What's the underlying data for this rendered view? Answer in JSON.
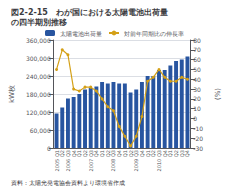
{
  "chart_data": {
    "type": "bar",
    "title": "図2-2-15　わが国における太陽電池出荷量\nの四半期別推移",
    "annotations": [
      "資料：太陽光発電協会資料より環境省作成"
    ],
    "y_label": "kW枚",
    "y2_label": "(%)",
    "categories": [
      "2005 Q1",
      "Q2",
      "2006 Q3",
      "Q4",
      "Q1",
      "Q2",
      "2007 Q3",
      "Q4",
      "Q1",
      "Q2",
      "2008 Q3",
      "Q4",
      "Q1",
      "Q2",
      "2009 Q3",
      "Q4",
      "Q1",
      "Q2",
      "2010 Q3",
      "Q4",
      "Q1",
      "Q2",
      "Q3",
      "Q4"
    ],
    "series": [
      {
        "name": "太陽電池出荷量",
        "type": "bar",
        "color": "#2855a0",
        "values": [
          115000,
          135000,
          165000,
          170000,
          180000,
          195000,
          200000,
          205000,
          220000,
          215000,
          220000,
          215000,
          215000,
          185000,
          195000,
          220000,
          240000,
          240000,
          260000,
          260000,
          275000,
          290000,
          295000,
          305000
        ]
      },
      {
        "name": "対前年同期比の伸長率",
        "type": "line",
        "axis": "y2",
        "color": "#d4a017",
        "marker": "circle",
        "values": [
          50,
          70,
          65,
          30,
          28,
          32,
          32,
          28,
          20,
          12,
          8,
          -8,
          -18,
          -28,
          -18,
          2,
          38,
          42,
          50,
          42,
          38,
          38,
          42,
          40
        ]
      }
    ],
    "ylim": [
      0,
      360000
    ],
    "yticks": [
      0,
      {
        "value": 60000,
        "label": "60,000"
      },
      {
        "value": 120000,
        "label": "120,000"
      },
      {
        "value": 180000,
        "label": "180,000"
      },
      {
        "value": 240000,
        "label": "240,000"
      },
      {
        "value": 300000,
        "label": "300,000"
      },
      {
        "value": 360000,
        "label": "360,000"
      }
    ],
    "y2lim": [
      -30,
      80
    ],
    "y2ticks": [
      -30,
      -20,
      -10,
      0,
      10,
      20,
      30,
      40,
      50,
      60,
      70,
      80
    ],
    "grid": true,
    "legend": "top"
  }
}
